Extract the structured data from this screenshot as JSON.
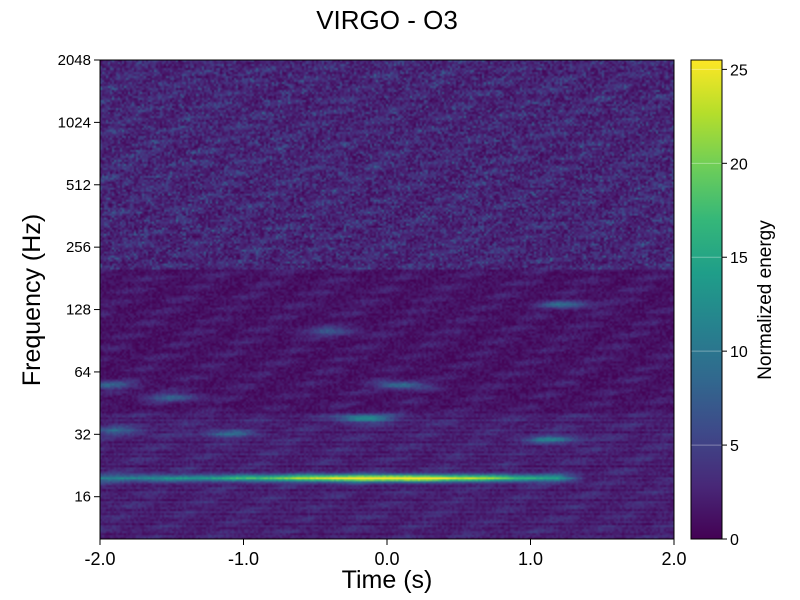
{
  "chart_data": {
    "type": "heatmap",
    "title": "VIRGO - O3",
    "xlabel": "Time (s)",
    "ylabel": "Frequency (Hz)",
    "xlim": [
      -2.0,
      2.0
    ],
    "ylim": [
      10,
      2048
    ],
    "y_scale": "log2",
    "x_ticks": [
      -2.0,
      -1.0,
      0.0,
      1.0,
      2.0
    ],
    "x_tick_labels": [
      "-2.0",
      "-1.0",
      "0.0",
      "1.0",
      "2.0"
    ],
    "y_ticks": [
      16,
      32,
      64,
      128,
      256,
      512,
      1024,
      2048
    ],
    "y_tick_labels": [
      "16",
      "32",
      "64",
      "128",
      "256",
      "512",
      "1024",
      "2048"
    ],
    "colorbar": {
      "label": "Normalized energy",
      "range": [
        0,
        25.5
      ],
      "ticks": [
        0,
        5,
        10,
        15,
        20,
        25
      ],
      "tick_labels": [
        "0",
        "5",
        "10",
        "15",
        "20",
        "25"
      ],
      "colormap": "viridis",
      "colors": [
        "#440154",
        "#482878",
        "#3e4989",
        "#31688e",
        "#26828e",
        "#1f9e89",
        "#35b779",
        "#6ece58",
        "#b5de2b",
        "#fde725"
      ]
    },
    "features": [
      {
        "kind": "line",
        "freq": 19.5,
        "t_start": -2.0,
        "t_end": 1.2,
        "peak_energy": 25.5,
        "peak_t": 0.0
      },
      {
        "kind": "blob",
        "freq": 38,
        "t": -0.15,
        "energy": 11
      },
      {
        "kind": "blob",
        "freq": 30,
        "t": 1.15,
        "energy": 8
      },
      {
        "kind": "blob",
        "freq": 48,
        "t": -1.5,
        "energy": 7
      },
      {
        "kind": "blob",
        "freq": 55,
        "t": 0.1,
        "energy": 8
      },
      {
        "kind": "blob",
        "freq": 55,
        "t": -1.95,
        "energy": 7
      },
      {
        "kind": "blob",
        "freq": 33,
        "t": -1.9,
        "energy": 6
      },
      {
        "kind": "blob",
        "freq": 32,
        "t": -1.1,
        "energy": 6
      },
      {
        "kind": "blob",
        "freq": 135,
        "t": 1.25,
        "energy": 7
      },
      {
        "kind": "blob",
        "freq": 100,
        "t": -0.4,
        "energy": 6
      }
    ]
  }
}
